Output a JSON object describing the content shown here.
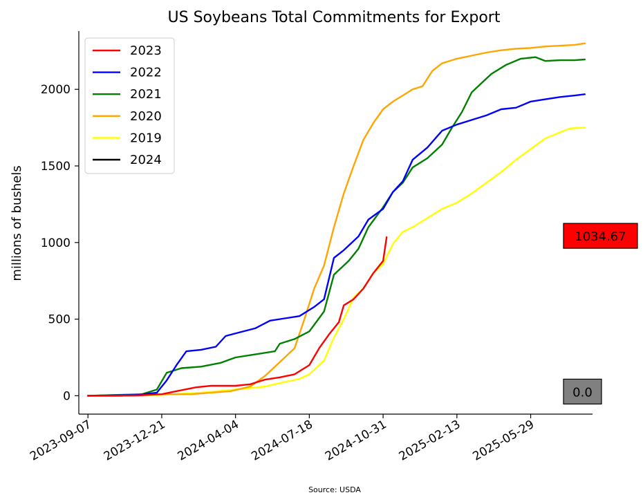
{
  "chart_data": {
    "type": "line",
    "title": "US Soybeans Total Commitments for Export",
    "ylabel": "millions of bushels",
    "xlabel": "",
    "source": "Source: USDA",
    "xlim": [
      "2023-08-25",
      "2025-08-25"
    ],
    "ylim": [
      -120,
      2380
    ],
    "yticks": [
      0,
      500,
      1000,
      1500,
      2000
    ],
    "xticks": [
      "2023-09-07",
      "2023-12-21",
      "2024-04-04",
      "2024-07-18",
      "2024-10-31",
      "2025-02-13",
      "2025-05-29"
    ],
    "grid": false,
    "legend_position": "upper-left",
    "series": [
      {
        "name": "2023",
        "color": "#ff0000",
        "points": [
          [
            "2023-09-07",
            0
          ],
          [
            "2023-10-12",
            0
          ],
          [
            "2023-11-16",
            2
          ],
          [
            "2023-12-21",
            10
          ],
          [
            "2024-01-11",
            30
          ],
          [
            "2024-02-08",
            55
          ],
          [
            "2024-02-29",
            65
          ],
          [
            "2024-04-04",
            65
          ],
          [
            "2024-04-25",
            75
          ],
          [
            "2024-05-16",
            105
          ],
          [
            "2024-06-06",
            120
          ],
          [
            "2024-06-27",
            140
          ],
          [
            "2024-07-18",
            200
          ],
          [
            "2024-08-01",
            310
          ],
          [
            "2024-08-15",
            400
          ],
          [
            "2024-08-29",
            480
          ],
          [
            "2024-09-05",
            590
          ],
          [
            "2024-09-19",
            630
          ],
          [
            "2024-10-03",
            700
          ],
          [
            "2024-10-17",
            800
          ],
          [
            "2024-10-31",
            880
          ],
          [
            "2024-11-05",
            1034.67
          ]
        ]
      },
      {
        "name": "2022",
        "color": "#0000ff",
        "points": [
          [
            "2023-09-07",
            0
          ],
          [
            "2023-11-16",
            5
          ],
          [
            "2023-12-14",
            20
          ],
          [
            "2023-12-28",
            100
          ],
          [
            "2024-01-11",
            200
          ],
          [
            "2024-01-25",
            290
          ],
          [
            "2024-02-15",
            300
          ],
          [
            "2024-03-07",
            320
          ],
          [
            "2024-03-21",
            390
          ],
          [
            "2024-04-11",
            415
          ],
          [
            "2024-05-02",
            440
          ],
          [
            "2024-05-23",
            490
          ],
          [
            "2024-06-13",
            505
          ],
          [
            "2024-07-04",
            520
          ],
          [
            "2024-07-25",
            580
          ],
          [
            "2024-08-08",
            630
          ],
          [
            "2024-08-22",
            900
          ],
          [
            "2024-09-05",
            950
          ],
          [
            "2024-09-26",
            1040
          ],
          [
            "2024-10-10",
            1150
          ],
          [
            "2024-10-31",
            1220
          ],
          [
            "2024-11-14",
            1330
          ],
          [
            "2024-11-28",
            1400
          ],
          [
            "2024-12-12",
            1540
          ],
          [
            "2025-01-02",
            1620
          ],
          [
            "2025-01-23",
            1730
          ],
          [
            "2025-02-13",
            1770
          ],
          [
            "2025-03-06",
            1800
          ],
          [
            "2025-03-27",
            1830
          ],
          [
            "2025-04-17",
            1870
          ],
          [
            "2025-05-08",
            1880
          ],
          [
            "2025-05-29",
            1920
          ],
          [
            "2025-06-19",
            1935
          ],
          [
            "2025-07-10",
            1950
          ],
          [
            "2025-07-31",
            1960
          ],
          [
            "2025-08-14",
            1968
          ]
        ]
      },
      {
        "name": "2021",
        "color": "#008000",
        "points": [
          [
            "2023-09-07",
            0
          ],
          [
            "2023-11-23",
            10
          ],
          [
            "2023-12-14",
            40
          ],
          [
            "2023-12-28",
            150
          ],
          [
            "2024-01-18",
            180
          ],
          [
            "2024-02-15",
            190
          ],
          [
            "2024-03-14",
            215
          ],
          [
            "2024-04-04",
            250
          ],
          [
            "2024-05-02",
            270
          ],
          [
            "2024-05-30",
            290
          ],
          [
            "2024-06-06",
            340
          ],
          [
            "2024-06-27",
            370
          ],
          [
            "2024-07-18",
            420
          ],
          [
            "2024-08-08",
            550
          ],
          [
            "2024-08-22",
            790
          ],
          [
            "2024-09-12",
            880
          ],
          [
            "2024-09-26",
            960
          ],
          [
            "2024-10-10",
            1100
          ],
          [
            "2024-10-31",
            1230
          ],
          [
            "2024-11-14",
            1330
          ],
          [
            "2024-11-28",
            1390
          ],
          [
            "2024-12-12",
            1490
          ],
          [
            "2025-01-02",
            1550
          ],
          [
            "2025-01-23",
            1640
          ],
          [
            "2025-02-06",
            1750
          ],
          [
            "2025-02-20",
            1850
          ],
          [
            "2025-03-06",
            1980
          ],
          [
            "2025-03-20",
            2040
          ],
          [
            "2025-04-03",
            2100
          ],
          [
            "2025-04-24",
            2160
          ],
          [
            "2025-05-15",
            2200
          ],
          [
            "2025-06-05",
            2210
          ],
          [
            "2025-06-19",
            2185
          ],
          [
            "2025-07-10",
            2190
          ],
          [
            "2025-07-31",
            2190
          ],
          [
            "2025-08-14",
            2195
          ]
        ]
      },
      {
        "name": "2020",
        "color": "#ffa500",
        "points": [
          [
            "2023-09-07",
            0
          ],
          [
            "2023-11-30",
            10
          ],
          [
            "2024-02-01",
            10
          ],
          [
            "2024-03-28",
            30
          ],
          [
            "2024-04-25",
            60
          ],
          [
            "2024-05-16",
            130
          ],
          [
            "2024-06-06",
            220
          ],
          [
            "2024-06-27",
            310
          ],
          [
            "2024-07-11",
            500
          ],
          [
            "2024-07-25",
            700
          ],
          [
            "2024-08-08",
            850
          ],
          [
            "2024-08-22",
            1100
          ],
          [
            "2024-09-05",
            1320
          ],
          [
            "2024-09-19",
            1500
          ],
          [
            "2024-10-03",
            1670
          ],
          [
            "2024-10-17",
            1780
          ],
          [
            "2024-10-31",
            1870
          ],
          [
            "2024-11-14",
            1920
          ],
          [
            "2024-11-28",
            1960
          ],
          [
            "2024-12-12",
            2000
          ],
          [
            "2024-12-26",
            2020
          ],
          [
            "2025-01-09",
            2120
          ],
          [
            "2025-01-23",
            2170
          ],
          [
            "2025-02-13",
            2200
          ],
          [
            "2025-03-06",
            2220
          ],
          [
            "2025-03-27",
            2240
          ],
          [
            "2025-04-17",
            2255
          ],
          [
            "2025-05-08",
            2265
          ],
          [
            "2025-05-29",
            2270
          ],
          [
            "2025-06-19",
            2280
          ],
          [
            "2025-07-10",
            2285
          ],
          [
            "2025-07-31",
            2290
          ],
          [
            "2025-08-14",
            2300
          ]
        ]
      },
      {
        "name": "2019",
        "color": "#ffff00",
        "points": [
          [
            "2023-09-07",
            0
          ],
          [
            "2023-12-21",
            5
          ],
          [
            "2024-02-15",
            20
          ],
          [
            "2024-04-04",
            40
          ],
          [
            "2024-05-16",
            60
          ],
          [
            "2024-06-13",
            90
          ],
          [
            "2024-07-04",
            110
          ],
          [
            "2024-07-18",
            140
          ],
          [
            "2024-08-08",
            230
          ],
          [
            "2024-08-22",
            380
          ],
          [
            "2024-09-05",
            500
          ],
          [
            "2024-09-19",
            640
          ],
          [
            "2024-10-03",
            700
          ],
          [
            "2024-10-17",
            800
          ],
          [
            "2024-10-31",
            860
          ],
          [
            "2024-11-14",
            990
          ],
          [
            "2024-11-28",
            1070
          ],
          [
            "2024-12-12",
            1100
          ],
          [
            "2025-01-02",
            1160
          ],
          [
            "2025-01-23",
            1220
          ],
          [
            "2025-02-13",
            1260
          ],
          [
            "2025-03-06",
            1320
          ],
          [
            "2025-03-27",
            1390
          ],
          [
            "2025-04-17",
            1460
          ],
          [
            "2025-05-08",
            1540
          ],
          [
            "2025-05-29",
            1610
          ],
          [
            "2025-06-19",
            1680
          ],
          [
            "2025-07-10",
            1720
          ],
          [
            "2025-07-24",
            1745
          ],
          [
            "2025-08-14",
            1750
          ]
        ]
      },
      {
        "name": "2024",
        "color": "#000000",
        "points": [
          [
            "2023-09-07",
            0
          ],
          [
            "2023-10-26",
            0
          ]
        ]
      }
    ],
    "annotations": [
      {
        "label": "1034.67",
        "value": 1034.67,
        "fill": "#ff0000"
      },
      {
        "label": "0.0",
        "value": 0,
        "fill": "#808080"
      }
    ]
  }
}
